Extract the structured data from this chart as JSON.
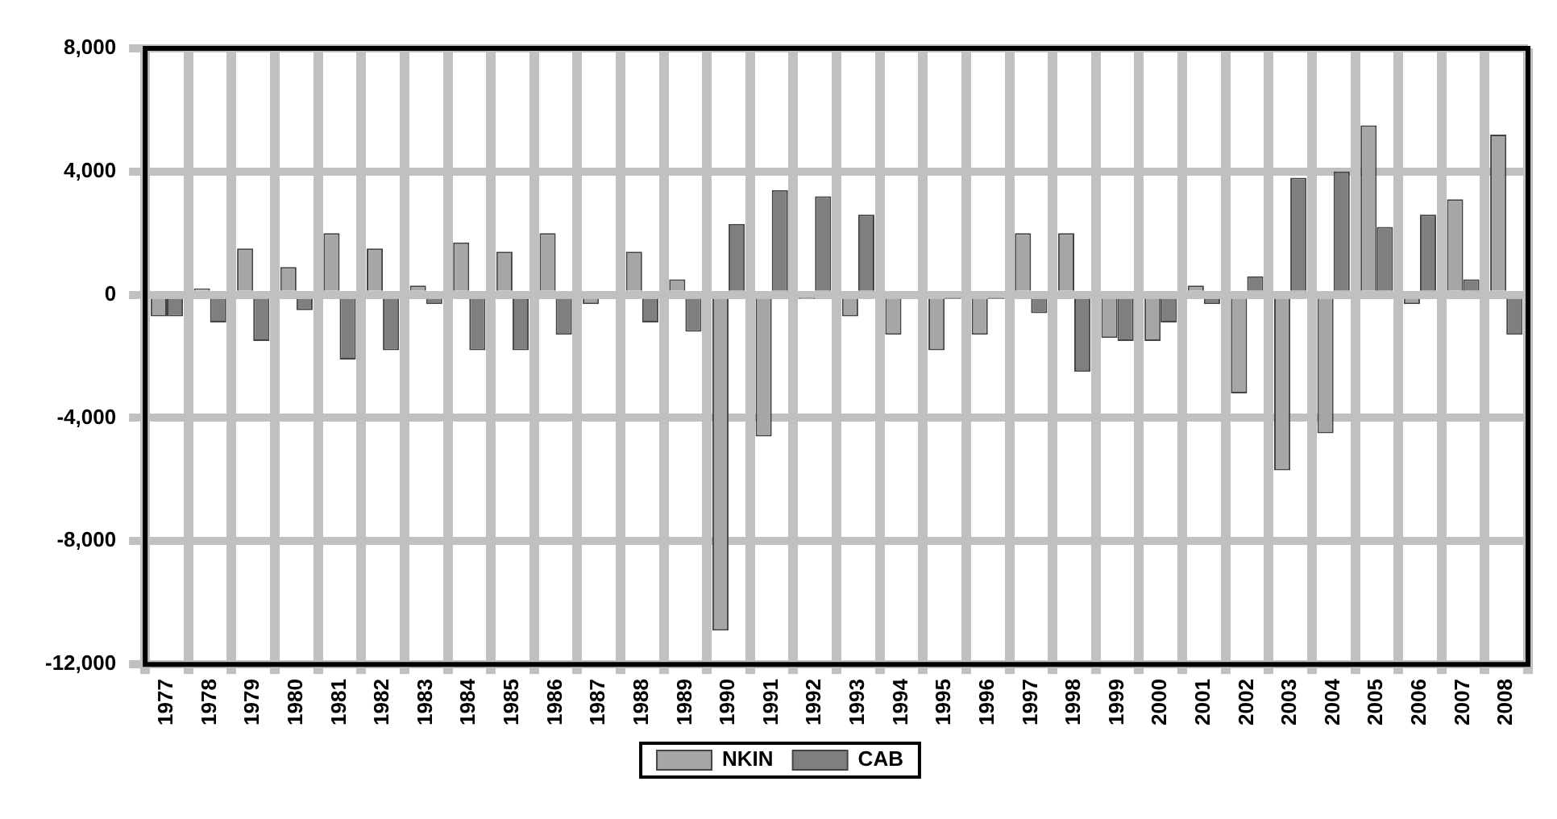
{
  "chart_data": {
    "type": "bar",
    "categories": [
      "1977",
      "1978",
      "1979",
      "1980",
      "1981",
      "1982",
      "1983",
      "1984",
      "1985",
      "1986",
      "1987",
      "1988",
      "1989",
      "1990",
      "1991",
      "1992",
      "1993",
      "1994",
      "1995",
      "1996",
      "1997",
      "1998",
      "1999",
      "2000",
      "2001",
      "2002",
      "2003",
      "2004",
      "2005",
      "2006",
      "2007",
      "2008"
    ],
    "series": [
      {
        "name": "NKIN",
        "color": "#a6a6a6",
        "values": [
          -700,
          200,
          1500,
          900,
          2000,
          1500,
          300,
          1700,
          1400,
          2000,
          -300,
          1400,
          500,
          -10900,
          -4600,
          -100,
          -700,
          -1300,
          -1800,
          -1300,
          2000,
          2000,
          -1400,
          -1500,
          300,
          -3200,
          -5700,
          -4500,
          5500,
          -300,
          3100,
          5200
        ]
      },
      {
        "name": "CAB",
        "color": "#7f7f7f",
        "values": [
          -700,
          -900,
          -1500,
          -500,
          -2100,
          -1800,
          -300,
          -1800,
          -1800,
          -1300,
          0,
          -900,
          -1200,
          2300,
          3400,
          3200,
          2600,
          0,
          -100,
          -100,
          -600,
          -2500,
          -1500,
          -900,
          -300,
          600,
          3800,
          4000,
          2200,
          2600,
          500,
          -1300
        ]
      }
    ],
    "ylim": [
      -12000,
      8000
    ],
    "yticks": [
      {
        "value": 8000,
        "label": "8,000"
      },
      {
        "value": 4000,
        "label": "4,000"
      },
      0,
      {
        "value": -4000,
        "label": "-4,000"
      },
      {
        "value": -8000,
        "label": "-8,000"
      },
      {
        "value": -12000,
        "label": "-12,000"
      }
    ],
    "grid": true,
    "legend": "bottom"
  }
}
